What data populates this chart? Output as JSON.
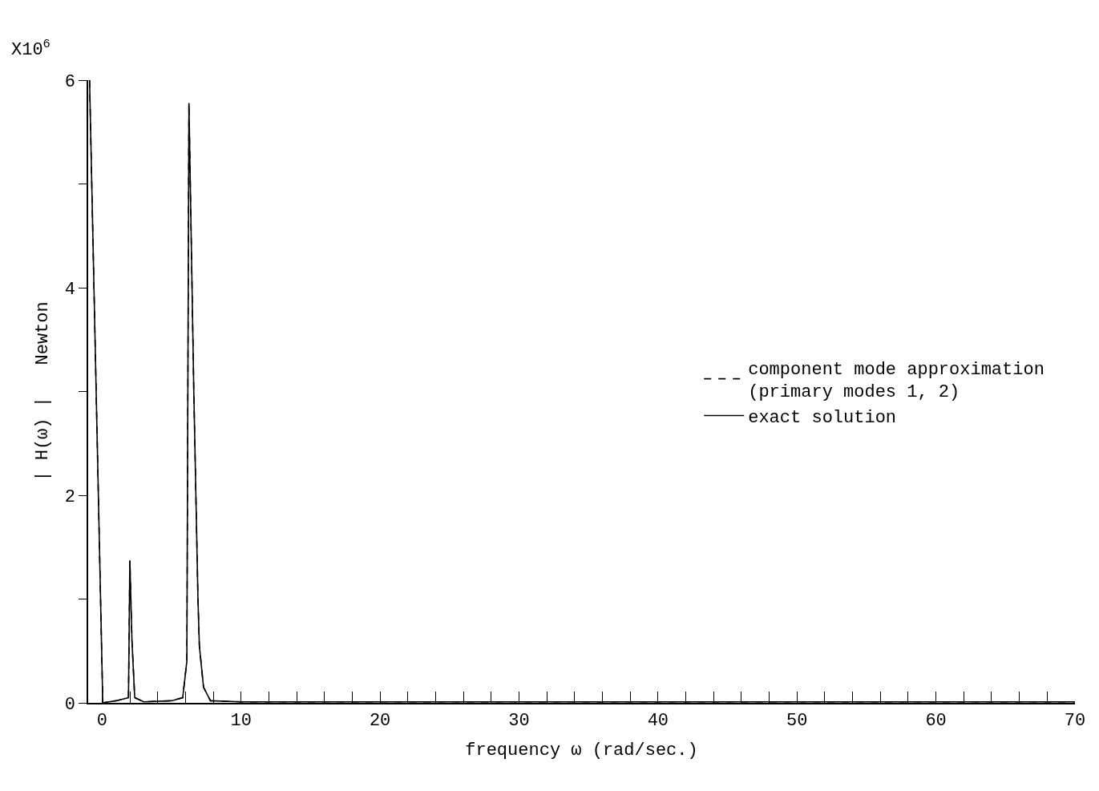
{
  "chart_data": {
    "type": "line",
    "xlabel": "frequency ω (rad/sec.)",
    "ylabel": "| H(ω) |   Newton",
    "annotations": [
      "X10$^{6}$"
    ],
    "x": [
      -0.9,
      0.05,
      1.0,
      1.9,
      2.0,
      2.15,
      2.35,
      3.0,
      5.0,
      5.8,
      6.1,
      6.25,
      6.6,
      6.9,
      7.0,
      7.3,
      7.8,
      10,
      30,
      70
    ],
    "series": [
      {
        "name": "component mode approximation\n(primary modes 1, 2)",
        "color": "#000000",
        "line_style": "dashed",
        "values": [
          6.0,
          0.0,
          0.02,
          0.05,
          1.37,
          0.6,
          0.05,
          0.01,
          0.02,
          0.05,
          0.4,
          5.78,
          3.0,
          1.0,
          0.55,
          0.15,
          0.02,
          0.01,
          0.01,
          0.01
        ]
      },
      {
        "name": "exact solution",
        "color": "#000000",
        "line_style": "solid",
        "values": [
          6.0,
          0.0,
          0.02,
          0.05,
          1.37,
          0.6,
          0.05,
          0.01,
          0.02,
          0.05,
          0.4,
          5.78,
          3.0,
          1.0,
          0.55,
          0.15,
          0.02,
          0.01,
          0.01,
          0.01
        ]
      }
    ],
    "xlim": [
      -1,
      70
    ],
    "xticks": [
      0,
      {
        "value": 2,
        "label": null
      },
      {
        "value": 4,
        "label": null
      },
      {
        "value": 6,
        "label": null
      },
      {
        "value": 8,
        "label": null
      },
      10,
      {
        "value": 12,
        "label": null
      },
      {
        "value": 14,
        "label": null
      },
      {
        "value": 16,
        "label": null
      },
      {
        "value": 18,
        "label": null
      },
      20,
      {
        "value": 22,
        "label": null
      },
      {
        "value": 24,
        "label": null
      },
      {
        "value": 26,
        "label": null
      },
      {
        "value": 28,
        "label": null
      },
      30,
      {
        "value": 32,
        "label": null
      },
      {
        "value": 34,
        "label": null
      },
      {
        "value": 36,
        "label": null
      },
      {
        "value": 38,
        "label": null
      },
      40,
      {
        "value": 42,
        "label": null
      },
      {
        "value": 44,
        "label": null
      },
      {
        "value": 46,
        "label": null
      },
      {
        "value": 48,
        "label": null
      },
      50,
      {
        "value": 52,
        "label": null
      },
      {
        "value": 54,
        "label": null
      },
      {
        "value": 56,
        "label": null
      },
      {
        "value": 58,
        "label": null
      },
      60,
      {
        "value": 62,
        "label": null
      },
      {
        "value": 64,
        "label": null
      },
      {
        "value": 66,
        "label": null
      },
      {
        "value": 68,
        "label": null
      },
      70
    ],
    "ylim": [
      0,
      6
    ],
    "yticks": [
      0,
      {
        "value": 1,
        "label": null
      },
      2,
      {
        "value": 3,
        "label": null
      },
      4,
      {
        "value": 5,
        "label": null
      },
      6
    ],
    "legend": "right",
    "marker": "none"
  }
}
